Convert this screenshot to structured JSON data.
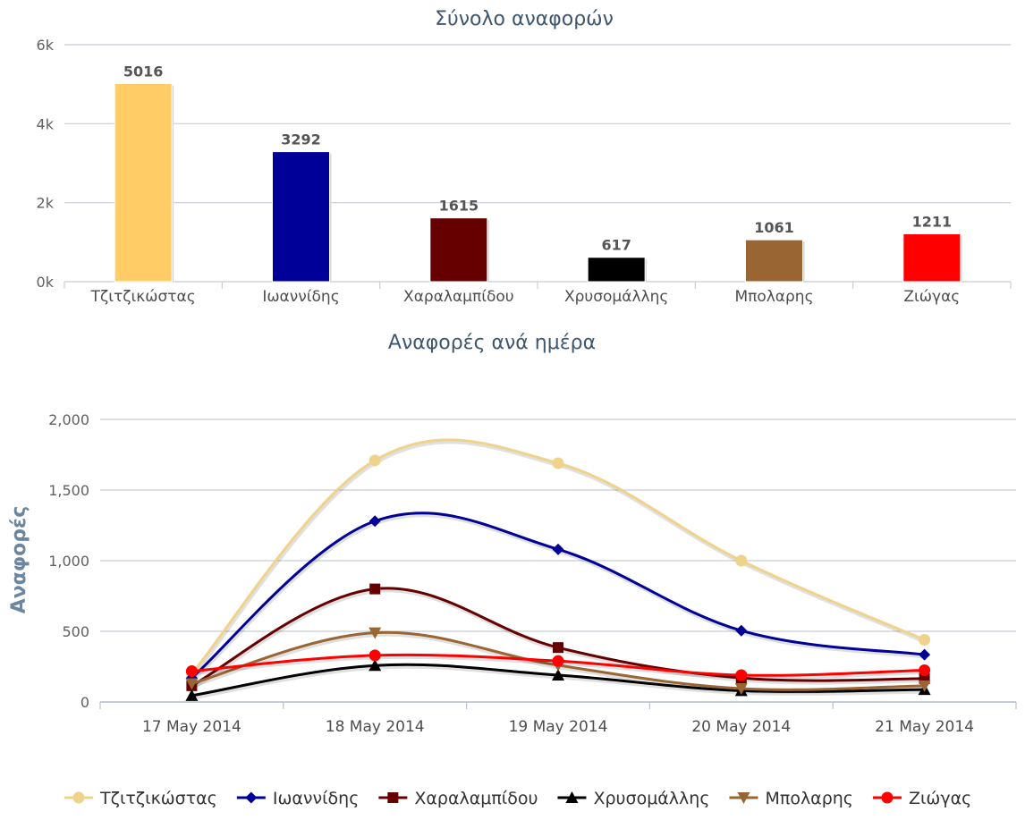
{
  "chart_data": [
    {
      "type": "bar",
      "title": "Σύνολο αναφορών",
      "categories": [
        "Τζιτζικώστας",
        "Ιωαννίδης",
        "Χαραλαμπίδου",
        "Χρυσομάλλης",
        "Μπολαρης",
        "Ζιώγας"
      ],
      "values": [
        5016,
        3292,
        1615,
        617,
        1061,
        1211
      ],
      "colors": [
        "#ffcc66",
        "#000099",
        "#660000",
        "#000000",
        "#996633",
        "#ff0000"
      ],
      "ylim": [
        0,
        6000
      ],
      "yticks": [
        0,
        2000,
        4000,
        6000
      ],
      "ytick_labels": [
        "0k",
        "2k",
        "4k",
        "6k"
      ],
      "data_labels": true,
      "grid": true,
      "legend": false
    },
    {
      "type": "line",
      "title": "Αναφορές ανά ημέρα",
      "ylabel": "Αναφορές",
      "xlabel": "",
      "categories": [
        "17 May 2014",
        "18 May 2014",
        "19 May 2014",
        "20 May 2014",
        "21 May 2014"
      ],
      "ylim": [
        0,
        2000
      ],
      "yticks": [
        0,
        500,
        1000,
        1500,
        2000
      ],
      "ytick_labels": [
        "0",
        "500",
        "1,000",
        "1,500",
        "2,000"
      ],
      "smooth": true,
      "grid": true,
      "legend_position": "bottom",
      "series": [
        {
          "name": "Τζιτζικώστας",
          "color": "#f0d38a",
          "marker": "circle",
          "values": [
            200,
            1710,
            1690,
            1000,
            440
          ]
        },
        {
          "name": "Ιωαννίδης",
          "color": "#000099",
          "marker": "diamond",
          "values": [
            170,
            1280,
            1080,
            505,
            335
          ]
        },
        {
          "name": "Χαραλαμπίδου",
          "color": "#660000",
          "marker": "square",
          "values": [
            115,
            800,
            385,
            170,
            165
          ]
        },
        {
          "name": "Χρυσομάλλης",
          "color": "#000000",
          "marker": "triangle",
          "values": [
            45,
            258,
            190,
            80,
            88
          ]
        },
        {
          "name": "Μπολαρης",
          "color": "#996633",
          "marker": "triangle-down",
          "values": [
            130,
            490,
            260,
            95,
            115
          ]
        },
        {
          "name": "Ζιώγας",
          "color": "#ff0000",
          "marker": "circle",
          "values": [
            218,
            330,
            290,
            190,
            225
          ]
        }
      ]
    }
  ]
}
